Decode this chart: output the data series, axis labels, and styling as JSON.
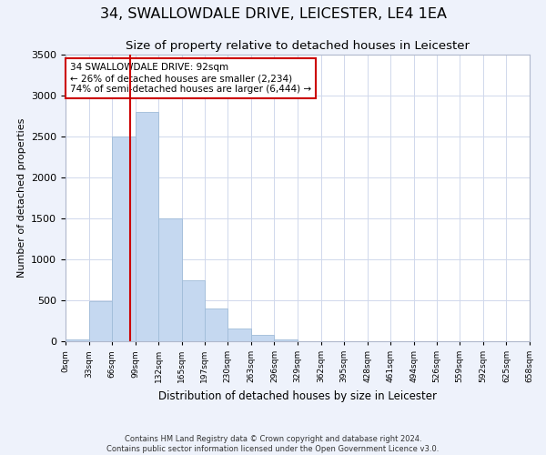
{
  "title": "34, SWALLOWDALE DRIVE, LEICESTER, LE4 1EA",
  "subtitle": "Size of property relative to detached houses in Leicester",
  "xlabel": "Distribution of detached houses by size in Leicester",
  "ylabel": "Number of detached properties",
  "bin_edges": [
    0,
    33,
    66,
    99,
    132,
    165,
    197,
    230,
    263,
    296,
    329,
    362,
    395,
    428,
    461,
    494,
    526,
    559,
    592,
    625,
    658
  ],
  "bar_heights": [
    25,
    490,
    2500,
    2800,
    1500,
    750,
    400,
    155,
    80,
    25,
    0,
    0,
    0,
    0,
    0,
    0,
    0,
    0,
    0,
    0
  ],
  "bar_color": "#c5d8f0",
  "bar_edgecolor": "#a0bcd8",
  "property_value": 92,
  "vline_color": "#cc0000",
  "annotation_text": "34 SWALLOWDALE DRIVE: 92sqm\n← 26% of detached houses are smaller (2,234)\n74% of semi-detached houses are larger (6,444) →",
  "annotation_box_edgecolor": "#cc0000",
  "annotation_box_facecolor": "#ffffff",
  "ylim": [
    0,
    3500
  ],
  "yticks": [
    0,
    500,
    1000,
    1500,
    2000,
    2500,
    3000,
    3500
  ],
  "tick_labels": [
    "0sqm",
    "33sqm",
    "66sqm",
    "99sqm",
    "132sqm",
    "165sqm",
    "197sqm",
    "230sqm",
    "263sqm",
    "296sqm",
    "329sqm",
    "362sqm",
    "395sqm",
    "428sqm",
    "461sqm",
    "494sqm",
    "526sqm",
    "559sqm",
    "592sqm",
    "625sqm",
    "658sqm"
  ],
  "footer_lines": [
    "Contains HM Land Registry data © Crown copyright and database right 2024.",
    "Contains public sector information licensed under the Open Government Licence v3.0."
  ],
  "background_color": "#eef2fb",
  "plot_background": "#ffffff",
  "grid_color": "#d0d8ec",
  "title_fontsize": 11.5,
  "subtitle_fontsize": 9.5,
  "ylabel_fontsize": 8,
  "xlabel_fontsize": 8.5,
  "tick_fontsize": 6.5,
  "ytick_fontsize": 8,
  "annotation_fontsize": 7.5,
  "footer_fontsize": 6
}
